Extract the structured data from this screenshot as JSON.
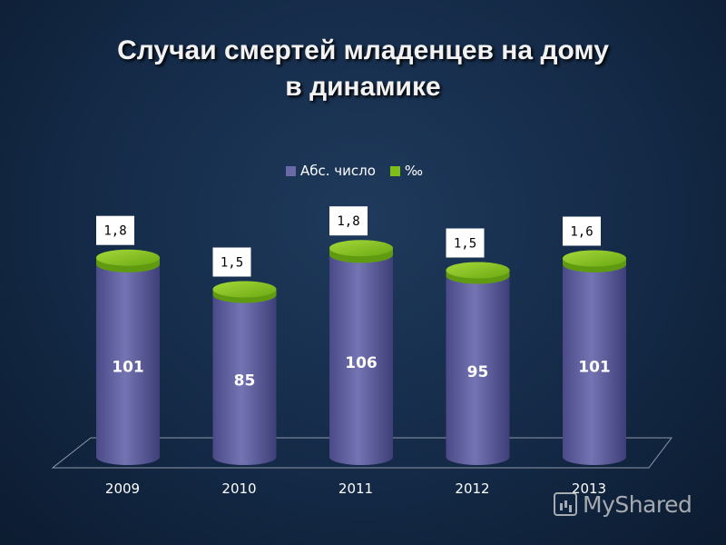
{
  "title_lines": [
    "Случаи смертей младенцев на дому",
    "в динамике"
  ],
  "legend": [
    {
      "label": "Абс. число",
      "color": "#6a6aa8"
    },
    {
      "label": "‰",
      "color": "#7fbf1a"
    }
  ],
  "chart_data": {
    "type": "bar",
    "categories": [
      "2009",
      "2010",
      "2011",
      "2012",
      "2013"
    ],
    "series": [
      {
        "name": "Абс. число",
        "values": [
          101,
          85,
          106,
          95,
          101
        ],
        "labels": [
          "101",
          "85",
          "106",
          "95",
          "101"
        ],
        "color": "#6a6aa8"
      },
      {
        "name": "‰",
        "values": [
          1.8,
          1.5,
          1.8,
          1.5,
          1.6
        ],
        "labels": [
          "1,8",
          "1,5",
          "1,8",
          "1,5",
          "1,6"
        ],
        "color": "#7fbf1a"
      }
    ],
    "stacked": true,
    "style": "3d-cylinder",
    "legend_position": "top",
    "grid": false
  },
  "watermark": {
    "text": "MyShared",
    "icon": "presentation-board-icon"
  }
}
